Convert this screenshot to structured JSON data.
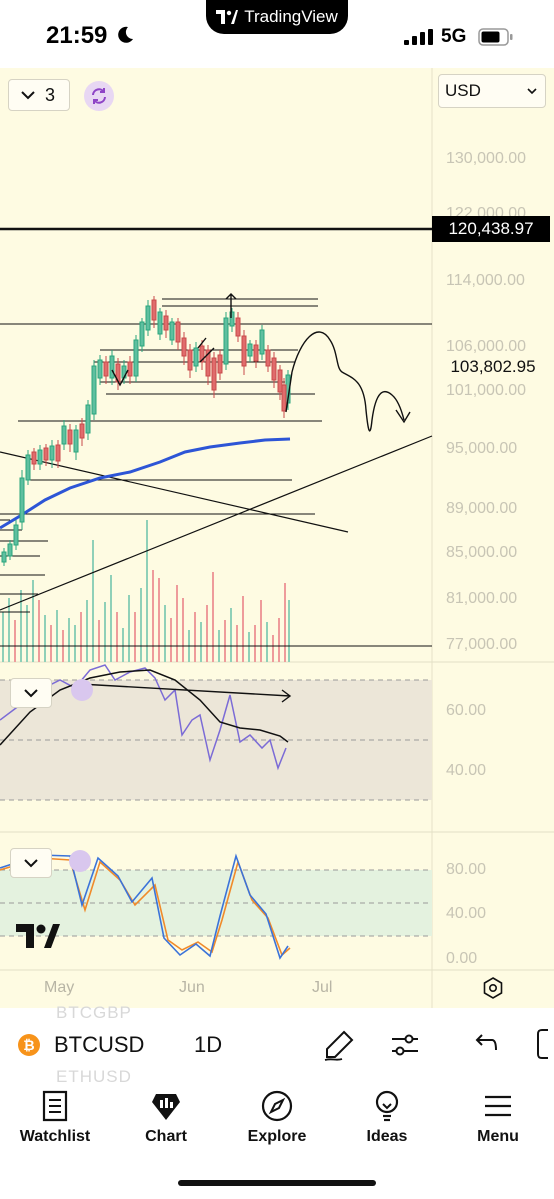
{
  "status_bar": {
    "time": "21:59",
    "app_pill": "TradingView",
    "network": "5G"
  },
  "toolbar": {
    "interval_count": "3",
    "currency": "USD"
  },
  "price_axis": [
    "130,000.00",
    "122,000.00",
    "114,000.00",
    "106,000.00",
    "101,000.00",
    "95,000.00",
    "89,000.00",
    "85,000.00",
    "81,000.00",
    "77,000.00"
  ],
  "price_tags": {
    "horizontal_line": "120,438.97",
    "last_price": "103,802.95"
  },
  "rsi_axis": [
    "60.00",
    "40.00"
  ],
  "stoch_axis": [
    "80.00",
    "40.00",
    "0.00"
  ],
  "time_axis": [
    "May",
    "Jun",
    "Jul"
  ],
  "symbol_bar": {
    "ghost_above": "BTCGBP",
    "symbol": "BTCUSD",
    "timeframe": "1D",
    "ghost_below": "ETHUSD"
  },
  "nav": [
    {
      "label": "Watchlist",
      "icon": "watchlist-icon"
    },
    {
      "label": "Chart",
      "icon": "chart-icon"
    },
    {
      "label": "Explore",
      "icon": "compass-icon"
    },
    {
      "label": "Ideas",
      "icon": "lightbulb-icon"
    },
    {
      "label": "Menu",
      "icon": "hamburger-icon"
    }
  ],
  "colors": {
    "chart_bg": "#fefbe2",
    "up": "#5fbf9f",
    "down": "#e06c6c",
    "ma": "#2d55d6",
    "rsi": "#7b6bd6",
    "stoch_k": "#3b73d9",
    "stoch_d": "#f08a2a"
  }
}
